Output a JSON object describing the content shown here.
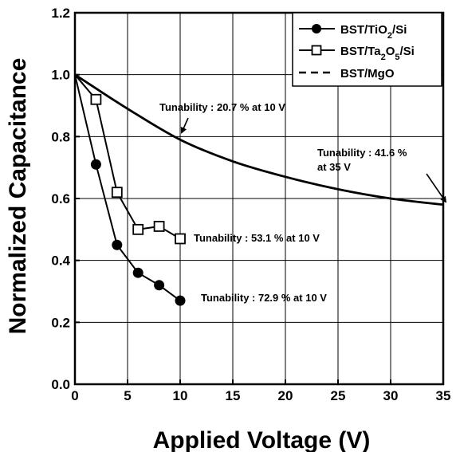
{
  "chart_data": {
    "type": "line",
    "xlabel": "Applied Voltage (V)",
    "ylabel": "Normalized Capacitance",
    "xlim": [
      0,
      35
    ],
    "ylim": [
      0.0,
      1.2
    ],
    "x_ticks": [
      "0",
      "5",
      "10",
      "15",
      "20",
      "25",
      "30",
      "35"
    ],
    "y_ticks": [
      "0.0",
      "0.2",
      "0.4",
      "0.6",
      "0.8",
      "1.0",
      "1.2"
    ],
    "grid": true,
    "legend_position": "top-right",
    "series": [
      {
        "name": "BST/TiO2/Si",
        "marker": "filled-circle",
        "line": "solid",
        "x": [
          0,
          2,
          4,
          6,
          8,
          10
        ],
        "y": [
          1.0,
          0.71,
          0.45,
          0.36,
          0.32,
          0.27
        ]
      },
      {
        "name": "BST/Ta2O5/Si",
        "marker": "open-square",
        "line": "solid",
        "x": [
          0,
          2,
          4,
          6,
          8,
          10
        ],
        "y": [
          1.0,
          0.92,
          0.62,
          0.5,
          0.51,
          0.47
        ]
      },
      {
        "name": "BST/MgO",
        "marker": "none",
        "line": "dashed",
        "x": [
          0,
          5,
          10,
          15,
          20,
          25,
          30,
          35
        ],
        "y": [
          1.0,
          0.89,
          0.79,
          0.72,
          0.67,
          0.63,
          0.6,
          0.58
        ]
      }
    ],
    "annotations": [
      {
        "text": "Tunability : 20.7 % at 10 V",
        "x": 10,
        "y": 0.79
      },
      {
        "text": "Tunability : 41.6 %",
        "text2": "at 35 V",
        "x": 35,
        "y": 0.58
      },
      {
        "text": "Tunability : 53.1 % at 10 V",
        "x": 10,
        "y": 0.47
      },
      {
        "text": "Tunability : 72.9 % at 10 V",
        "x": 10,
        "y": 0.27
      }
    ]
  }
}
